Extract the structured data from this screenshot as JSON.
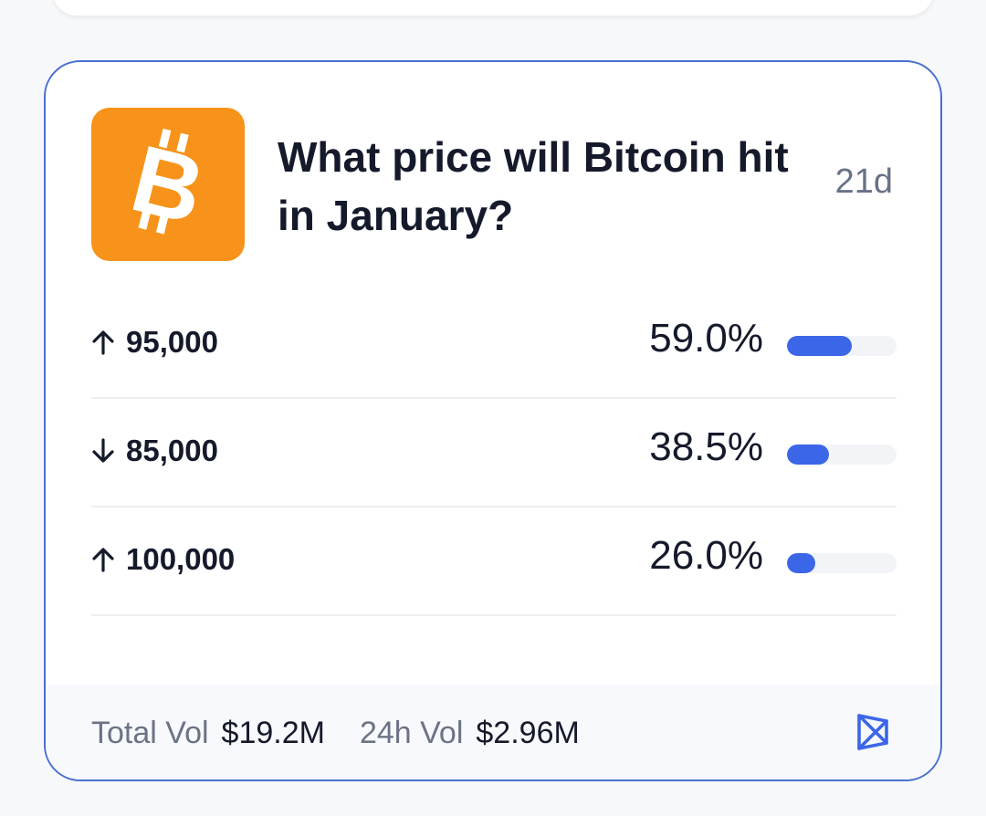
{
  "market": {
    "title": "What price will Bitcoin hit in January?",
    "time_left": "21d",
    "icon": "bitcoin-icon",
    "icon_color": "#f7931a",
    "accent_color": "#3c66e8",
    "outcomes": [
      {
        "direction": "up",
        "label": "95,000",
        "percent": "59.0%",
        "fill": 0.59
      },
      {
        "direction": "down",
        "label": "85,000",
        "percent": "38.5%",
        "fill": 0.385
      },
      {
        "direction": "up",
        "label": "100,000",
        "percent": "26.0%",
        "fill": 0.26
      }
    ]
  },
  "footer": {
    "total_vol_label": "Total Vol",
    "total_vol_value": "$19.2M",
    "vol_24h_label": "24h Vol",
    "vol_24h_value": "$2.96M",
    "action_icon": "bookmark-icon"
  }
}
